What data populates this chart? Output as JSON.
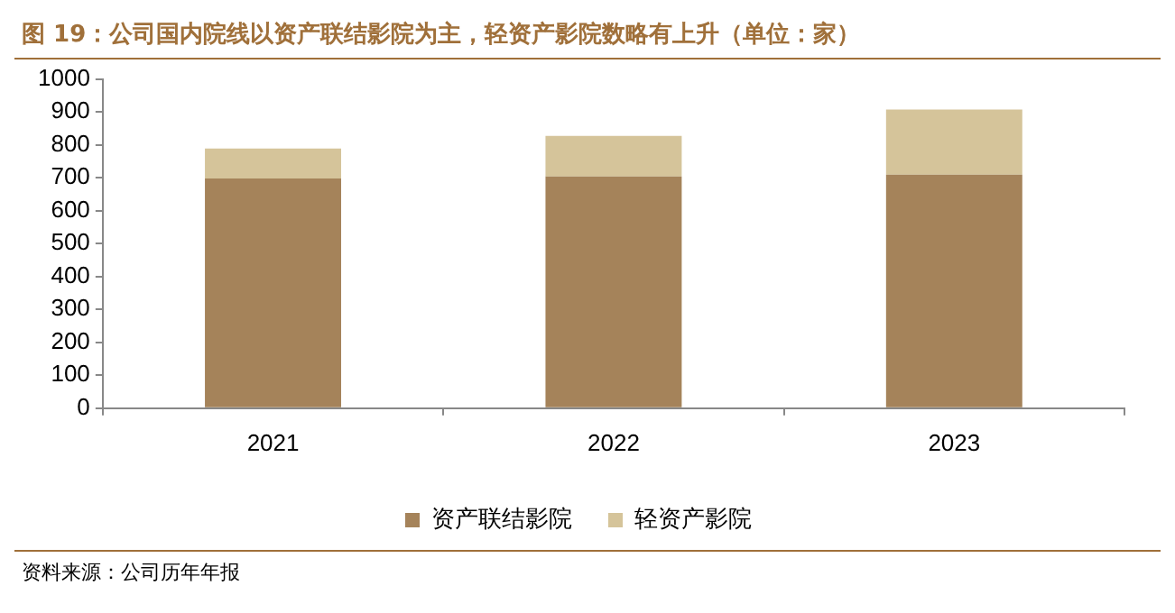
{
  "chart_data": {
    "type": "bar",
    "title": "图 19：公司国内院线以资产联结影院为主，轻资产影院数略有上升（单位：家）",
    "categories": [
      "2021",
      "2022",
      "2023"
    ],
    "stacked": true,
    "series": [
      {
        "name": "资产联结影院",
        "color": "#a5835a",
        "values": [
          698,
          704,
          709
        ]
      },
      {
        "name": "轻资产影院",
        "color": "#d5c49a",
        "values": [
          91,
          123,
          198
        ]
      }
    ],
    "ylim": [
      0,
      1000
    ],
    "yticks": [
      0,
      100,
      200,
      300,
      400,
      500,
      600,
      700,
      800,
      900,
      1000
    ],
    "grid": false,
    "legend": "bottom",
    "annotations": [
      "资料来源：公司历年年报"
    ]
  }
}
